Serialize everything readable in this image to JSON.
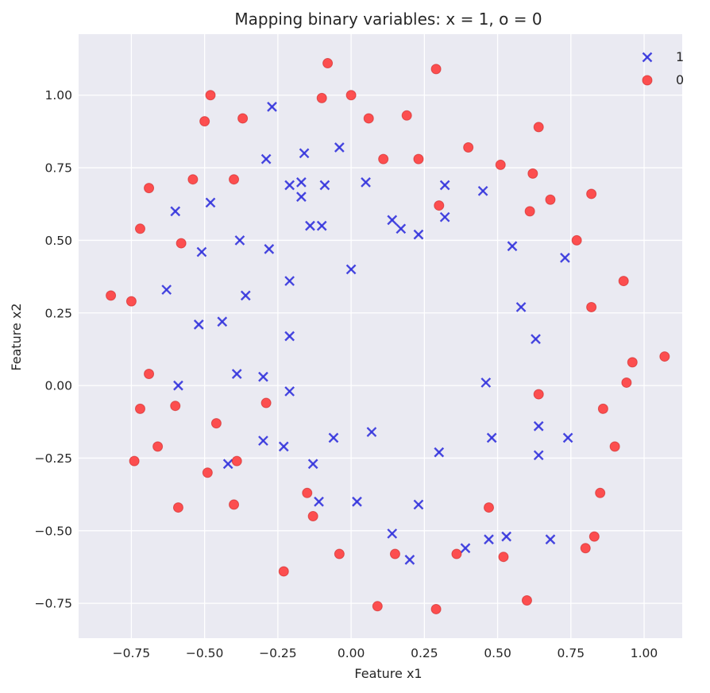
{
  "chart_data": {
    "type": "scatter",
    "title": "Mapping binary variables: x = 1, o = 0",
    "xlabel": "Feature x1",
    "ylabel": "Feature x2",
    "xlim": [
      -0.93,
      1.13
    ],
    "ylim": [
      -0.87,
      1.21
    ],
    "xticks": [
      -0.75,
      -0.5,
      -0.25,
      0.0,
      0.25,
      0.5,
      0.75,
      1.0
    ],
    "yticks": [
      -0.75,
      -0.5,
      -0.25,
      0.0,
      0.25,
      0.5,
      0.75,
      1.0
    ],
    "xtick_labels": [
      "−0.75",
      "−0.50",
      "−0.25",
      "0.00",
      "0.25",
      "0.50",
      "0.75",
      "1.00"
    ],
    "ytick_labels": [
      "−0.75",
      "−0.50",
      "−0.25",
      "0.00",
      "0.25",
      "0.50",
      "0.75",
      "1.00"
    ],
    "grid": true,
    "legend_position": "top-right",
    "background_color": "#eaeaf2",
    "series": [
      {
        "name": "1",
        "marker": "x",
        "color": "#3333dd",
        "points": [
          [
            -0.27,
            0.96
          ],
          [
            -0.29,
            0.78
          ],
          [
            -0.16,
            0.8
          ],
          [
            -0.04,
            0.82
          ],
          [
            -0.21,
            0.69
          ],
          [
            -0.17,
            0.7
          ],
          [
            -0.09,
            0.69
          ],
          [
            -0.17,
            0.65
          ],
          [
            0.05,
            0.7
          ],
          [
            0.32,
            0.69
          ],
          [
            0.45,
            0.67
          ],
          [
            -0.6,
            0.6
          ],
          [
            -0.48,
            0.63
          ],
          [
            0.14,
            0.57
          ],
          [
            0.32,
            0.58
          ],
          [
            -0.38,
            0.5
          ],
          [
            -0.14,
            0.55
          ],
          [
            -0.1,
            0.55
          ],
          [
            0.17,
            0.54
          ],
          [
            0.23,
            0.52
          ],
          [
            0.55,
            0.48
          ],
          [
            -0.51,
            0.46
          ],
          [
            -0.28,
            0.47
          ],
          [
            0.73,
            0.44
          ],
          [
            0.0,
            0.4
          ],
          [
            -0.63,
            0.33
          ],
          [
            -0.21,
            0.36
          ],
          [
            -0.36,
            0.31
          ],
          [
            0.58,
            0.27
          ],
          [
            -0.52,
            0.21
          ],
          [
            -0.44,
            0.22
          ],
          [
            -0.21,
            0.17
          ],
          [
            0.63,
            0.16
          ],
          [
            -0.39,
            0.04
          ],
          [
            -0.3,
            0.03
          ],
          [
            -0.59,
            0.0
          ],
          [
            0.46,
            0.01
          ],
          [
            -0.21,
            -0.02
          ],
          [
            -0.3,
            -0.19
          ],
          [
            -0.23,
            -0.21
          ],
          [
            -0.06,
            -0.18
          ],
          [
            0.07,
            -0.16
          ],
          [
            0.48,
            -0.18
          ],
          [
            0.64,
            -0.14
          ],
          [
            0.74,
            -0.18
          ],
          [
            0.3,
            -0.23
          ],
          [
            0.64,
            -0.24
          ],
          [
            -0.42,
            -0.27
          ],
          [
            -0.13,
            -0.27
          ],
          [
            -0.11,
            -0.4
          ],
          [
            0.02,
            -0.4
          ],
          [
            0.23,
            -0.41
          ],
          [
            0.14,
            -0.51
          ],
          [
            0.39,
            -0.56
          ],
          [
            0.47,
            -0.53
          ],
          [
            0.53,
            -0.52
          ],
          [
            0.68,
            -0.53
          ],
          [
            0.2,
            -0.6
          ]
        ]
      },
      {
        "name": "0",
        "marker": "o",
        "color": "#ff3333",
        "points": [
          [
            -0.08,
            1.11
          ],
          [
            0.29,
            1.09
          ],
          [
            -0.48,
            1.0
          ],
          [
            -0.1,
            0.99
          ],
          [
            0.0,
            1.0
          ],
          [
            -0.5,
            0.91
          ],
          [
            -0.37,
            0.92
          ],
          [
            0.06,
            0.92
          ],
          [
            0.19,
            0.93
          ],
          [
            0.64,
            0.89
          ],
          [
            0.4,
            0.82
          ],
          [
            0.11,
            0.78
          ],
          [
            0.23,
            0.78
          ],
          [
            0.51,
            0.76
          ],
          [
            0.62,
            0.73
          ],
          [
            -0.54,
            0.71
          ],
          [
            -0.4,
            0.71
          ],
          [
            -0.69,
            0.68
          ],
          [
            0.3,
            0.62
          ],
          [
            0.68,
            0.64
          ],
          [
            0.82,
            0.66
          ],
          [
            0.61,
            0.6
          ],
          [
            -0.72,
            0.54
          ],
          [
            -0.58,
            0.49
          ],
          [
            0.77,
            0.5
          ],
          [
            0.93,
            0.36
          ],
          [
            -0.82,
            0.31
          ],
          [
            -0.75,
            0.29
          ],
          [
            0.82,
            0.27
          ],
          [
            1.07,
            0.1
          ],
          [
            0.96,
            0.08
          ],
          [
            -0.69,
            0.04
          ],
          [
            0.94,
            0.01
          ],
          [
            0.64,
            -0.03
          ],
          [
            -0.29,
            -0.06
          ],
          [
            -0.6,
            -0.07
          ],
          [
            -0.72,
            -0.08
          ],
          [
            0.86,
            -0.08
          ],
          [
            -0.46,
            -0.13
          ],
          [
            -0.66,
            -0.21
          ],
          [
            0.9,
            -0.21
          ],
          [
            -0.74,
            -0.26
          ],
          [
            -0.39,
            -0.26
          ],
          [
            -0.49,
            -0.3
          ],
          [
            -0.15,
            -0.37
          ],
          [
            0.85,
            -0.37
          ],
          [
            -0.59,
            -0.42
          ],
          [
            -0.4,
            -0.41
          ],
          [
            0.47,
            -0.42
          ],
          [
            -0.13,
            -0.45
          ],
          [
            0.83,
            -0.52
          ],
          [
            0.8,
            -0.56
          ],
          [
            -0.04,
            -0.58
          ],
          [
            0.15,
            -0.58
          ],
          [
            0.36,
            -0.58
          ],
          [
            0.52,
            -0.59
          ],
          [
            -0.23,
            -0.64
          ],
          [
            0.6,
            -0.74
          ],
          [
            0.09,
            -0.76
          ],
          [
            0.29,
            -0.77
          ]
        ]
      }
    ]
  }
}
